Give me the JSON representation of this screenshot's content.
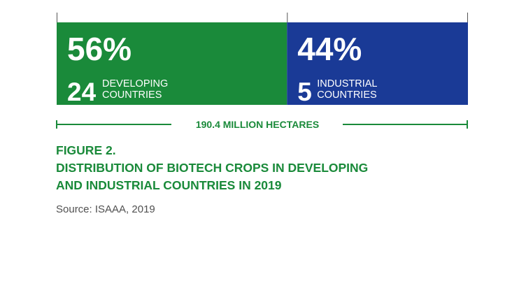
{
  "chart_data": {
    "type": "bar",
    "orientation": "stacked-horizontal",
    "series": [
      {
        "value_label": "56%",
        "value": 56,
        "count": "24",
        "group_line1": "DEVELOPING",
        "group_line2": "COUNTRIES",
        "color": "#1a8a3a"
      },
      {
        "value_label": "44%",
        "value": 44,
        "count": "5",
        "group_line1": "INDUSTRIAL",
        "group_line2": "COUNTRIES",
        "color": "#1a3a96"
      }
    ],
    "total_label": "190.4 MILLION HECTARES",
    "axis_color": "#1a8a3a"
  },
  "caption": {
    "figure": "FIGURE 2.",
    "title_line1": "DISTRIBUTION OF BIOTECH CROPS IN DEVELOPING",
    "title_line2": "AND INDUSTRIAL COUNTRIES IN 2019"
  },
  "source": "Source: ISAAA, 2019"
}
